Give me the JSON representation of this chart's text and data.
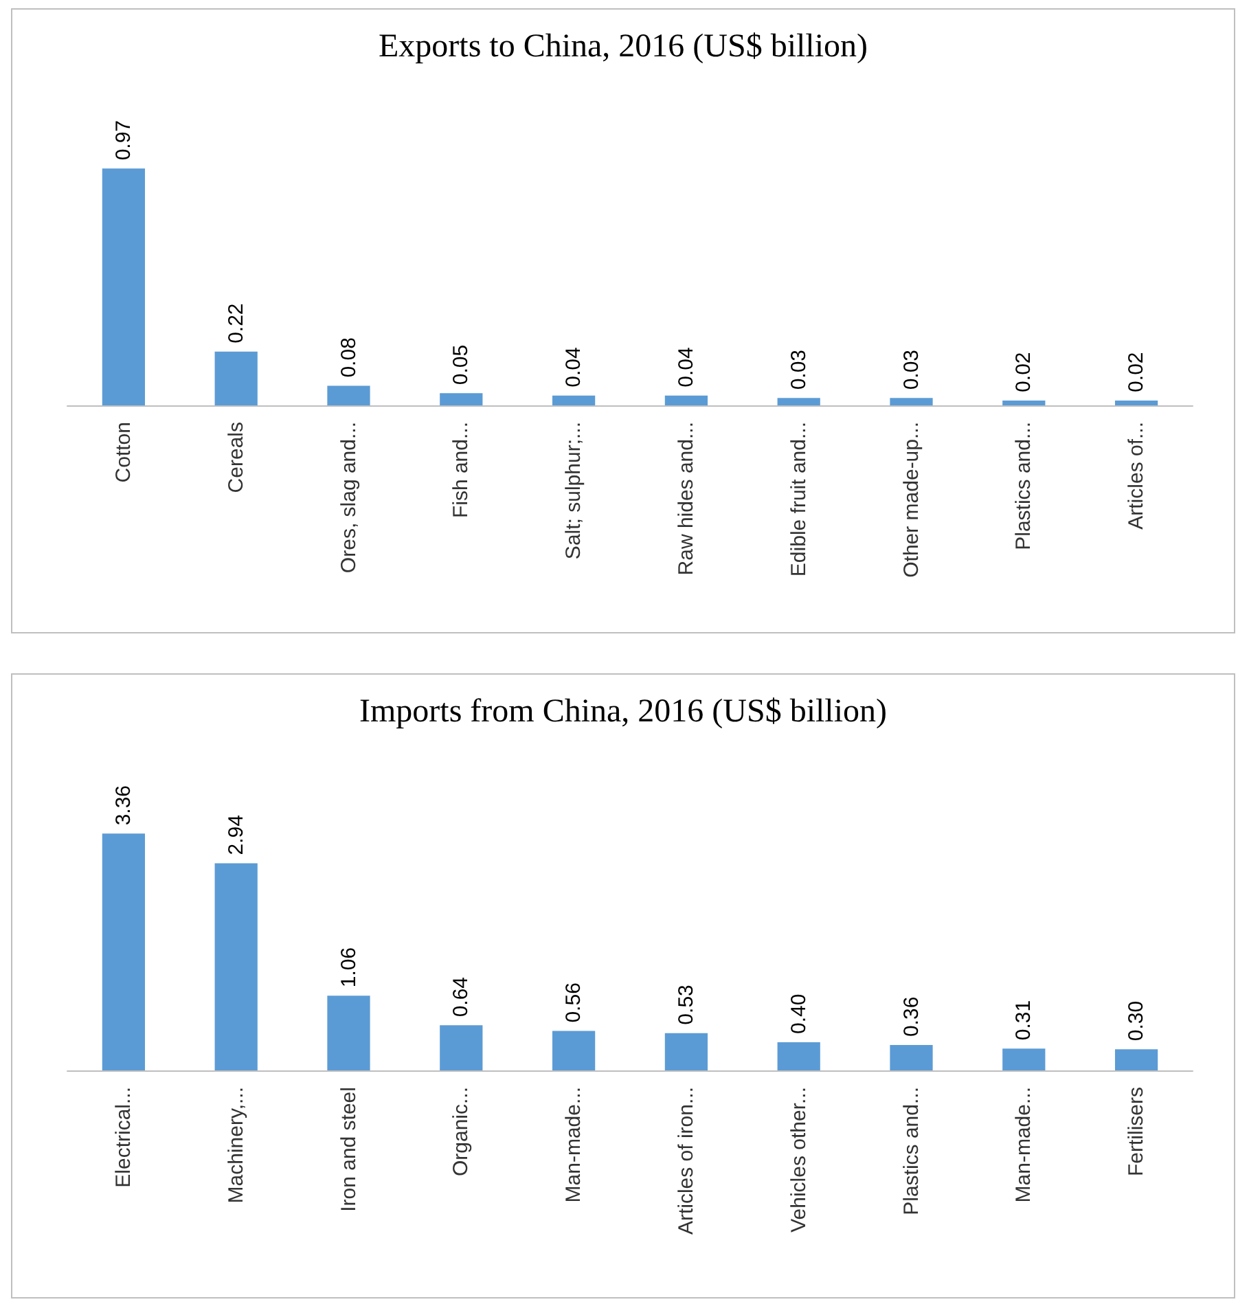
{
  "chart_data": [
    {
      "type": "bar",
      "title": "Exports to China, 2016 (US$ billion)",
      "categories": [
        "Cotton",
        "Cereals",
        "Ores, slag and...",
        "Fish and...",
        "Salt; sulphur;...",
        "Raw hides and...",
        "Edible fruit and...",
        "Other made-up...",
        "Plastics and...",
        "Articles of..."
      ],
      "values": [
        0.97,
        0.22,
        0.08,
        0.05,
        0.04,
        0.04,
        0.03,
        0.03,
        0.02,
        0.02
      ],
      "color": "#5b9bd5",
      "value_labels": [
        "0.97",
        "0.22",
        "0.08",
        "0.05",
        "0.04",
        "0.04",
        "0.03",
        "0.03",
        "0.02",
        "0.02"
      ]
    },
    {
      "type": "bar",
      "title": "Imports from China, 2016 (US$ billion)",
      "categories": [
        "Electrical...",
        "Machinery,...",
        "Iron and steel",
        "Organic...",
        "Man-made...",
        "Articles of iron...",
        "Vehicles other...",
        "Plastics and...",
        "Man-made...",
        "Fertilisers"
      ],
      "values": [
        3.36,
        2.94,
        1.06,
        0.64,
        0.56,
        0.53,
        0.4,
        0.36,
        0.31,
        0.3
      ],
      "color": "#5b9bd5",
      "value_labels": [
        "3.36",
        "2.94",
        "1.06",
        "0.64",
        "0.56",
        "0.53",
        "0.40",
        "0.36",
        "0.31",
        "0.30"
      ]
    }
  ]
}
